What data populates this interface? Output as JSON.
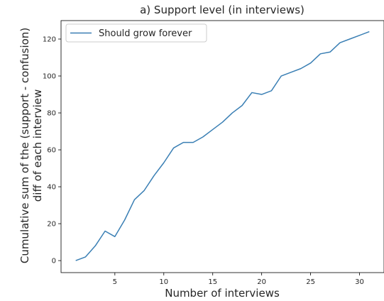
{
  "chart_data": {
    "type": "line",
    "title": "a) Support level (in interviews)",
    "xlabel": "Number of interviews",
    "ylabel_line1": "Cumulative sum of the (support - confusion)",
    "ylabel_line2": "diff of each interview",
    "xlim": [
      -0.5,
      32.5
    ],
    "ylim": [
      -6.5,
      130
    ],
    "x_ticks": [
      5,
      10,
      15,
      20,
      25,
      30
    ],
    "y_ticks": [
      0,
      20,
      40,
      60,
      80,
      100,
      120
    ],
    "grid": false,
    "legend_position": "upper-left",
    "series": [
      {
        "name": "Should grow forever",
        "color": "#3a7fb4",
        "x": [
          1,
          2,
          3,
          4,
          5,
          6,
          7,
          8,
          9,
          10,
          11,
          12,
          13,
          14,
          15,
          16,
          17,
          18,
          19,
          20,
          21,
          22,
          23,
          24,
          25,
          26,
          27,
          28,
          29,
          30,
          31
        ],
        "y": [
          0,
          2,
          8,
          16,
          13,
          22,
          33,
          38,
          46,
          53,
          61,
          64,
          64,
          67,
          71,
          75,
          80,
          84,
          91,
          90,
          92,
          100,
          102,
          104,
          107,
          112,
          113,
          118,
          120,
          122,
          124
        ]
      }
    ]
  }
}
